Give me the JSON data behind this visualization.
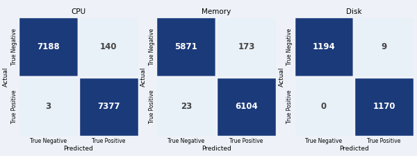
{
  "matrices": [
    {
      "title": "CPU",
      "values": [
        [
          7188,
          140
        ],
        [
          3,
          7377
        ]
      ]
    },
    {
      "title": "Memory",
      "values": [
        [
          5871,
          173
        ],
        [
          23,
          6104
        ]
      ]
    },
    {
      "title": "Disk",
      "values": [
        [
          1194,
          9
        ],
        [
          0,
          1170
        ]
      ]
    }
  ],
  "dark_color": "#1a3a7a",
  "light_color": "#e8f0f8",
  "dark_text_color": "#ffffff",
  "light_text_color": "#444444",
  "tick_labels": [
    "True Negative",
    "True Positive"
  ],
  "xlabel": "Predicted",
  "ylabel": "Actual",
  "background_color": "#eef2f8",
  "title_fontsize": 7.5,
  "value_fontsize": 8.5,
  "tick_fontsize": 5.5,
  "ylabel_fontsize": 6.5,
  "xlabel_fontsize": 6.5
}
